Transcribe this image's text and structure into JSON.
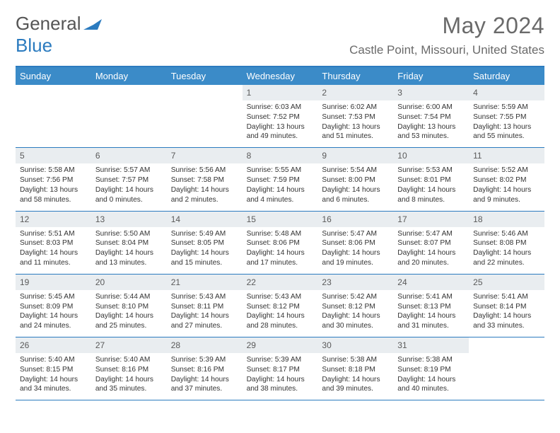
{
  "logo": {
    "text1": "General",
    "text2": "Blue"
  },
  "title": "May 2024",
  "location": "Castle Point, Missouri, United States",
  "header_bg": "#3b8bc8",
  "accent": "#2b7bbf",
  "daynum_bg": "#e9edf0",
  "text_color": "#333333",
  "muted_color": "#6a6a6a",
  "days": [
    "Sunday",
    "Monday",
    "Tuesday",
    "Wednesday",
    "Thursday",
    "Friday",
    "Saturday"
  ],
  "weeks": [
    [
      {
        "n": "",
        "sunrise": "",
        "sunset": "",
        "daylight": ""
      },
      {
        "n": "",
        "sunrise": "",
        "sunset": "",
        "daylight": ""
      },
      {
        "n": "",
        "sunrise": "",
        "sunset": "",
        "daylight": ""
      },
      {
        "n": "1",
        "sunrise": "Sunrise: 6:03 AM",
        "sunset": "Sunset: 7:52 PM",
        "daylight": "Daylight: 13 hours and 49 minutes."
      },
      {
        "n": "2",
        "sunrise": "Sunrise: 6:02 AM",
        "sunset": "Sunset: 7:53 PM",
        "daylight": "Daylight: 13 hours and 51 minutes."
      },
      {
        "n": "3",
        "sunrise": "Sunrise: 6:00 AM",
        "sunset": "Sunset: 7:54 PM",
        "daylight": "Daylight: 13 hours and 53 minutes."
      },
      {
        "n": "4",
        "sunrise": "Sunrise: 5:59 AM",
        "sunset": "Sunset: 7:55 PM",
        "daylight": "Daylight: 13 hours and 55 minutes."
      }
    ],
    [
      {
        "n": "5",
        "sunrise": "Sunrise: 5:58 AM",
        "sunset": "Sunset: 7:56 PM",
        "daylight": "Daylight: 13 hours and 58 minutes."
      },
      {
        "n": "6",
        "sunrise": "Sunrise: 5:57 AM",
        "sunset": "Sunset: 7:57 PM",
        "daylight": "Daylight: 14 hours and 0 minutes."
      },
      {
        "n": "7",
        "sunrise": "Sunrise: 5:56 AM",
        "sunset": "Sunset: 7:58 PM",
        "daylight": "Daylight: 14 hours and 2 minutes."
      },
      {
        "n": "8",
        "sunrise": "Sunrise: 5:55 AM",
        "sunset": "Sunset: 7:59 PM",
        "daylight": "Daylight: 14 hours and 4 minutes."
      },
      {
        "n": "9",
        "sunrise": "Sunrise: 5:54 AM",
        "sunset": "Sunset: 8:00 PM",
        "daylight": "Daylight: 14 hours and 6 minutes."
      },
      {
        "n": "10",
        "sunrise": "Sunrise: 5:53 AM",
        "sunset": "Sunset: 8:01 PM",
        "daylight": "Daylight: 14 hours and 8 minutes."
      },
      {
        "n": "11",
        "sunrise": "Sunrise: 5:52 AM",
        "sunset": "Sunset: 8:02 PM",
        "daylight": "Daylight: 14 hours and 9 minutes."
      }
    ],
    [
      {
        "n": "12",
        "sunrise": "Sunrise: 5:51 AM",
        "sunset": "Sunset: 8:03 PM",
        "daylight": "Daylight: 14 hours and 11 minutes."
      },
      {
        "n": "13",
        "sunrise": "Sunrise: 5:50 AM",
        "sunset": "Sunset: 8:04 PM",
        "daylight": "Daylight: 14 hours and 13 minutes."
      },
      {
        "n": "14",
        "sunrise": "Sunrise: 5:49 AM",
        "sunset": "Sunset: 8:05 PM",
        "daylight": "Daylight: 14 hours and 15 minutes."
      },
      {
        "n": "15",
        "sunrise": "Sunrise: 5:48 AM",
        "sunset": "Sunset: 8:06 PM",
        "daylight": "Daylight: 14 hours and 17 minutes."
      },
      {
        "n": "16",
        "sunrise": "Sunrise: 5:47 AM",
        "sunset": "Sunset: 8:06 PM",
        "daylight": "Daylight: 14 hours and 19 minutes."
      },
      {
        "n": "17",
        "sunrise": "Sunrise: 5:47 AM",
        "sunset": "Sunset: 8:07 PM",
        "daylight": "Daylight: 14 hours and 20 minutes."
      },
      {
        "n": "18",
        "sunrise": "Sunrise: 5:46 AM",
        "sunset": "Sunset: 8:08 PM",
        "daylight": "Daylight: 14 hours and 22 minutes."
      }
    ],
    [
      {
        "n": "19",
        "sunrise": "Sunrise: 5:45 AM",
        "sunset": "Sunset: 8:09 PM",
        "daylight": "Daylight: 14 hours and 24 minutes."
      },
      {
        "n": "20",
        "sunrise": "Sunrise: 5:44 AM",
        "sunset": "Sunset: 8:10 PM",
        "daylight": "Daylight: 14 hours and 25 minutes."
      },
      {
        "n": "21",
        "sunrise": "Sunrise: 5:43 AM",
        "sunset": "Sunset: 8:11 PM",
        "daylight": "Daylight: 14 hours and 27 minutes."
      },
      {
        "n": "22",
        "sunrise": "Sunrise: 5:43 AM",
        "sunset": "Sunset: 8:12 PM",
        "daylight": "Daylight: 14 hours and 28 minutes."
      },
      {
        "n": "23",
        "sunrise": "Sunrise: 5:42 AM",
        "sunset": "Sunset: 8:12 PM",
        "daylight": "Daylight: 14 hours and 30 minutes."
      },
      {
        "n": "24",
        "sunrise": "Sunrise: 5:41 AM",
        "sunset": "Sunset: 8:13 PM",
        "daylight": "Daylight: 14 hours and 31 minutes."
      },
      {
        "n": "25",
        "sunrise": "Sunrise: 5:41 AM",
        "sunset": "Sunset: 8:14 PM",
        "daylight": "Daylight: 14 hours and 33 minutes."
      }
    ],
    [
      {
        "n": "26",
        "sunrise": "Sunrise: 5:40 AM",
        "sunset": "Sunset: 8:15 PM",
        "daylight": "Daylight: 14 hours and 34 minutes."
      },
      {
        "n": "27",
        "sunrise": "Sunrise: 5:40 AM",
        "sunset": "Sunset: 8:16 PM",
        "daylight": "Daylight: 14 hours and 35 minutes."
      },
      {
        "n": "28",
        "sunrise": "Sunrise: 5:39 AM",
        "sunset": "Sunset: 8:16 PM",
        "daylight": "Daylight: 14 hours and 37 minutes."
      },
      {
        "n": "29",
        "sunrise": "Sunrise: 5:39 AM",
        "sunset": "Sunset: 8:17 PM",
        "daylight": "Daylight: 14 hours and 38 minutes."
      },
      {
        "n": "30",
        "sunrise": "Sunrise: 5:38 AM",
        "sunset": "Sunset: 8:18 PM",
        "daylight": "Daylight: 14 hours and 39 minutes."
      },
      {
        "n": "31",
        "sunrise": "Sunrise: 5:38 AM",
        "sunset": "Sunset: 8:19 PM",
        "daylight": "Daylight: 14 hours and 40 minutes."
      },
      {
        "n": "",
        "sunrise": "",
        "sunset": "",
        "daylight": ""
      }
    ]
  ],
  "typography": {
    "title_fontsize": 32,
    "location_fontsize": 17,
    "dayhead_fontsize": 13,
    "cell_fontsize": 10.2,
    "daynum_fontsize": 12
  }
}
